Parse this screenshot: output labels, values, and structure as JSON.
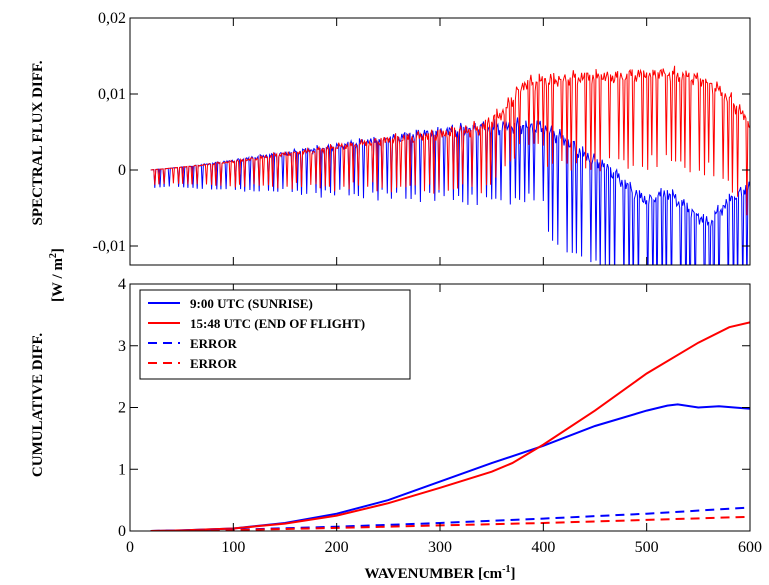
{
  "chart_data": [
    {
      "type": "line",
      "ylabel": "SPECTRAL FLUX DIFF.",
      "xlim": [
        0,
        600
      ],
      "ylim": [
        -0.0125,
        0.02
      ],
      "yticks": [
        -0.01,
        0,
        0.01,
        0.02
      ],
      "ytick_labels": [
        "-0,01",
        "0",
        "0,01",
        "0,02"
      ],
      "xticks": [
        0,
        100,
        200,
        300,
        400,
        500,
        600
      ],
      "series": [
        {
          "color": "#0000ff",
          "x": [
            20,
            60,
            100,
            140,
            180,
            220,
            260,
            300,
            340,
            380,
            400,
            420,
            440,
            460,
            480,
            500,
            520,
            540,
            560,
            580,
            600
          ],
          "y": [
            0,
            0.0005,
            0.0012,
            0.002,
            0.0027,
            0.0035,
            0.0043,
            0.005,
            0.0055,
            0.0058,
            0.0056,
            0.004,
            0.002,
            0.0005,
            -0.002,
            -0.004,
            -0.003,
            -0.005,
            -0.007,
            -0.004,
            -0.002
          ]
        },
        {
          "color": "#ff0000",
          "x": [
            20,
            60,
            100,
            140,
            180,
            220,
            260,
            300,
            340,
            360,
            380,
            400,
            420,
            440,
            460,
            480,
            500,
            520,
            540,
            560,
            580,
            600
          ],
          "y": [
            0,
            0.0005,
            0.0011,
            0.0019,
            0.0026,
            0.0034,
            0.0041,
            0.0047,
            0.0055,
            0.0075,
            0.0112,
            0.0118,
            0.012,
            0.0122,
            0.0123,
            0.0124,
            0.0125,
            0.0128,
            0.0122,
            0.0115,
            0.0095,
            0.006
          ]
        }
      ]
    },
    {
      "type": "line",
      "xlabel": "WAVENUMBER [cm-1]",
      "ylabel": "CUMULATIVE DIFF.",
      "shared_ylabel_unit": "[W / m2]",
      "xlim": [
        0,
        600
      ],
      "ylim": [
        0,
        4
      ],
      "yticks": [
        0,
        1,
        2,
        3,
        4
      ],
      "xticks": [
        0,
        100,
        200,
        300,
        400,
        500,
        600
      ],
      "legend_position": "top-left",
      "series": [
        {
          "name": "9:00 UTC (SUNRISE)",
          "color": "#0000ff",
          "style": "solid",
          "x": [
            20,
            50,
            100,
            150,
            200,
            250,
            300,
            350,
            400,
            450,
            500,
            520,
            530,
            550,
            570,
            600
          ],
          "y": [
            0,
            0.01,
            0.04,
            0.13,
            0.28,
            0.5,
            0.8,
            1.1,
            1.38,
            1.7,
            1.95,
            2.03,
            2.05,
            2.0,
            2.02,
            1.98
          ]
        },
        {
          "name": "15:48 UTC (END OF FLIGHT)",
          "color": "#ff0000",
          "style": "solid",
          "x": [
            20,
            50,
            100,
            150,
            200,
            250,
            300,
            350,
            370,
            400,
            450,
            500,
            550,
            580,
            600
          ],
          "y": [
            0,
            0.01,
            0.04,
            0.12,
            0.25,
            0.45,
            0.7,
            0.96,
            1.1,
            1.4,
            1.95,
            2.55,
            3.05,
            3.3,
            3.38
          ]
        },
        {
          "name": "ERROR",
          "color": "#0000ff",
          "style": "dashed",
          "x": [
            20,
            100,
            200,
            300,
            400,
            500,
            600
          ],
          "y": [
            0,
            0.02,
            0.07,
            0.13,
            0.2,
            0.28,
            0.38
          ]
        },
        {
          "name": "ERROR",
          "color": "#ff0000",
          "style": "dashed",
          "x": [
            20,
            100,
            200,
            300,
            400,
            500,
            600
          ],
          "y": [
            0,
            0.015,
            0.05,
            0.09,
            0.13,
            0.18,
            0.23
          ]
        }
      ]
    }
  ],
  "labels": {
    "top_ylabel": "SPECTRAL FLUX DIFF.",
    "bottom_ylabel": "CUMULATIVE DIFF.",
    "unit_main": "[W / m",
    "unit_sup": "2",
    "unit_end": "]",
    "xlabel_main": "WAVENUMBER [cm",
    "xlabel_sup": "-1",
    "xlabel_end": "]"
  }
}
